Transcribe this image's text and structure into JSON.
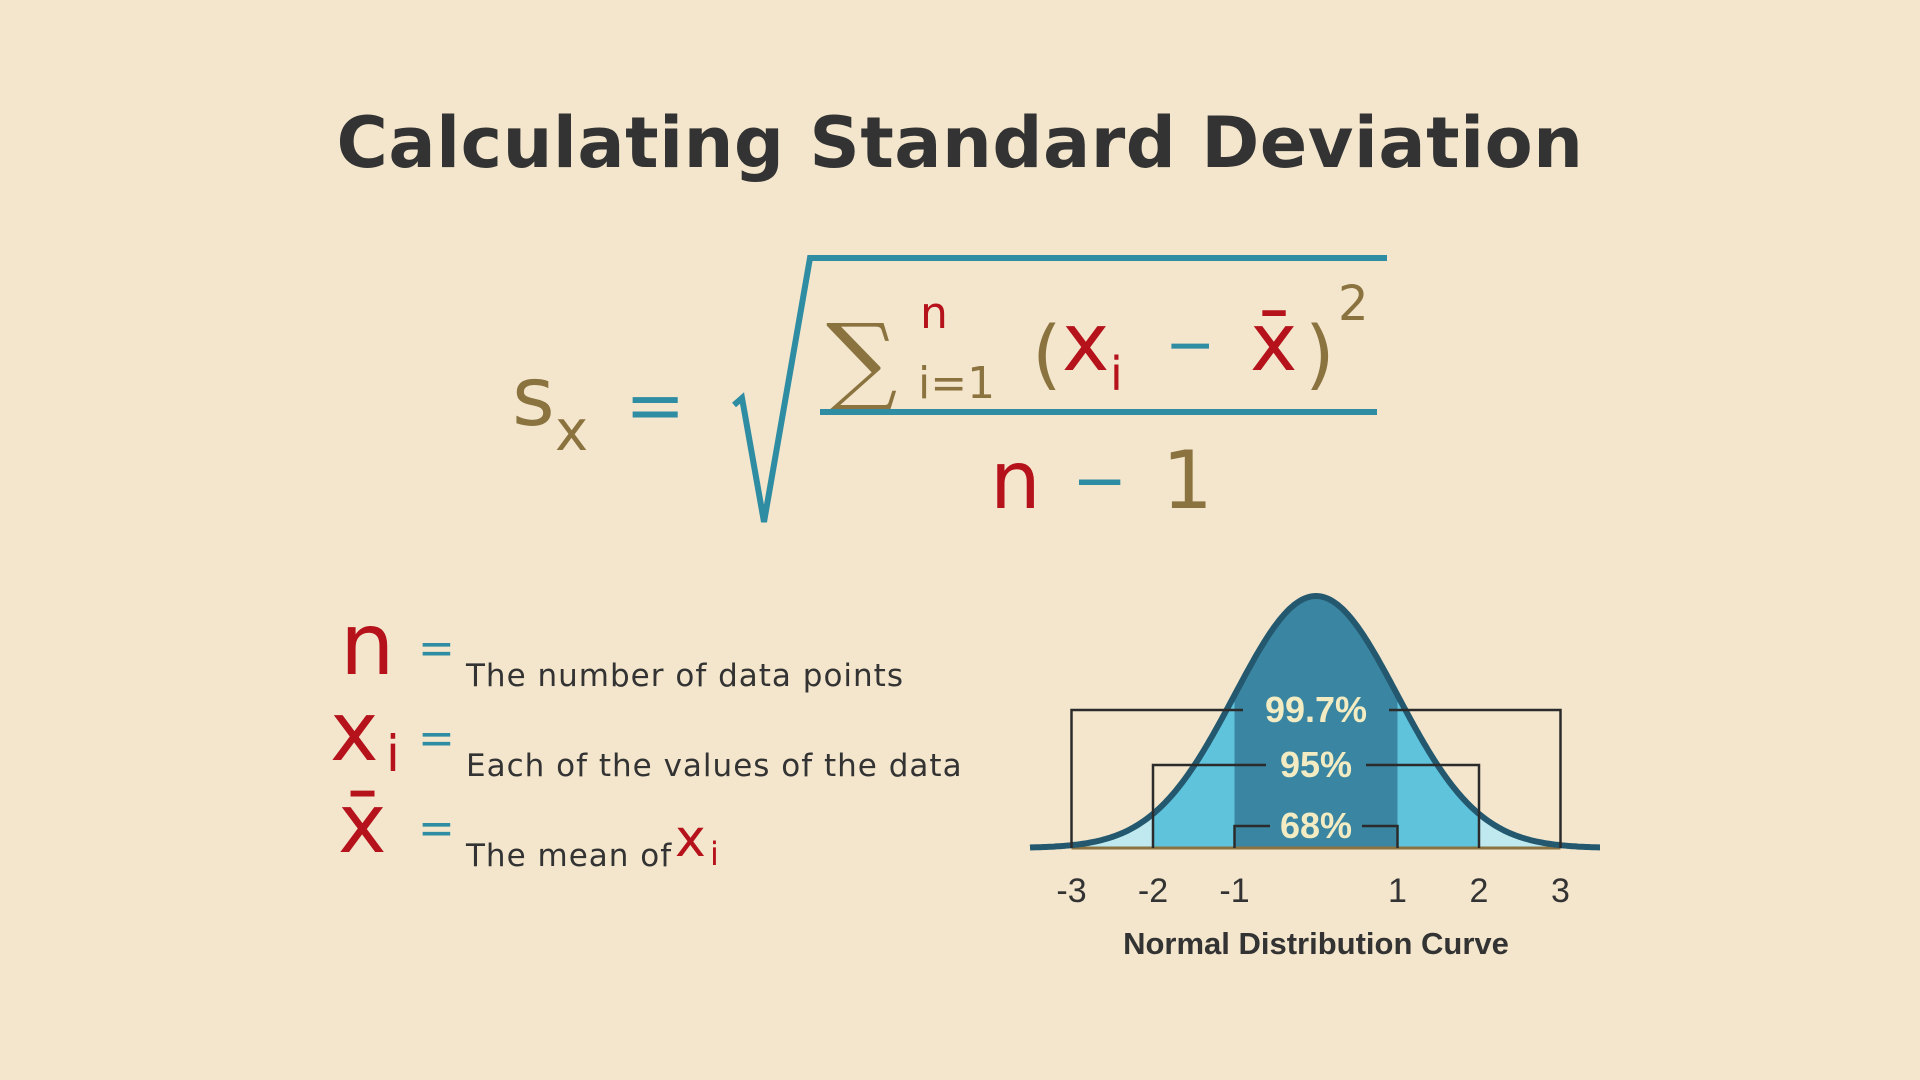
{
  "title": "Calculating Standard Deviation",
  "formula": {
    "lhs_var": "s",
    "lhs_sub": "x",
    "equals": "=",
    "sigma": "∑",
    "sigma_top": "n",
    "sigma_bottom": "i=1",
    "lparen": "(",
    "xi_var": "x",
    "xi_sub": "i",
    "minus": "−",
    "xbar": "x̄",
    "rparen": ")",
    "power": "2",
    "denominator_n": "n",
    "denominator_minus": "−",
    "denominator_one": "1"
  },
  "legend": [
    {
      "symbol": "n",
      "sub": "",
      "equals": "=",
      "text": "The number of data points",
      "suffix": "",
      "suffix_sub": ""
    },
    {
      "symbol": "x",
      "sub": "i",
      "equals": "=",
      "text": "Each of the values of the data",
      "suffix": "",
      "suffix_sub": ""
    },
    {
      "symbol": "x̄",
      "sub": "",
      "equals": "=",
      "text": "The mean of",
      "suffix": "x",
      "suffix_sub": "i"
    }
  ],
  "colors": {
    "background": "#f3e6cc",
    "olive": "#8b7340",
    "red": "#b5121b",
    "teal": "#2e8ca3",
    "dark_teal": "#3a86a2",
    "mid_blue": "#5fc3dc",
    "light_blue": "#bfe9ef",
    "curve_stroke": "#24586e",
    "label_cream": "#f3ecc2"
  },
  "chart_data": {
    "type": "area",
    "title": "Normal Distribution Curve",
    "x_ticks": [
      "-3",
      "-2",
      "-1",
      "1",
      "2",
      "3"
    ],
    "x_tick_values": [
      -3,
      -2,
      -1,
      1,
      2,
      3
    ],
    "xlim": [
      -3.5,
      3.5
    ],
    "bands": [
      {
        "label": "68%",
        "from": -1,
        "to": 1
      },
      {
        "label": "95%",
        "from": -2,
        "to": 2
      },
      {
        "label": "99.7%",
        "from": -3,
        "to": 3
      }
    ]
  }
}
